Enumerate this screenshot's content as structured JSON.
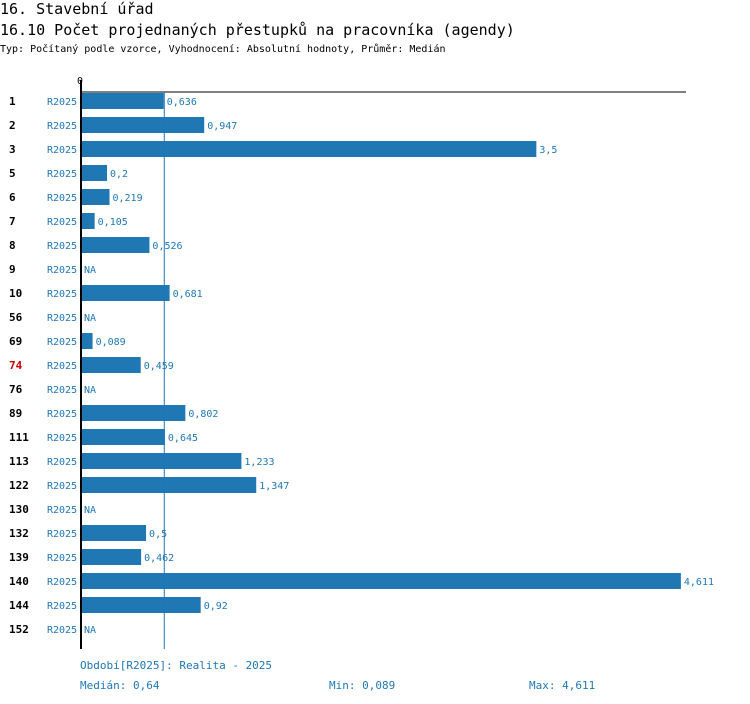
{
  "header": {
    "section": "16. Stavební úřad",
    "title": "16.10 Počet projednaných přestupků na pracovníka (agendy)",
    "subtitle": "Typ: Počítaný podle vzorce, Vyhodnocení: Absolutní hodnoty, Průměr: Medián"
  },
  "colors": {
    "bar": "#1f77b4",
    "label": "#1f77b4",
    "id_text": "#000000",
    "highlight_id": "#cc0000",
    "axis": "#000000",
    "median_line": "#1f77b4"
  },
  "chart_data": {
    "type": "bar",
    "orientation": "horizontal",
    "axis_zero_label": "0",
    "series_label": "R2025",
    "highlight_id": "74",
    "median": 0.64,
    "rows": [
      {
        "id": "1",
        "series": "R2025",
        "value": 0.636,
        "label": "0,636"
      },
      {
        "id": "2",
        "series": "R2025",
        "value": 0.947,
        "label": "0,947"
      },
      {
        "id": "3",
        "series": "R2025",
        "value": 3.5,
        "label": "3,5"
      },
      {
        "id": "5",
        "series": "R2025",
        "value": 0.2,
        "label": "0,2"
      },
      {
        "id": "6",
        "series": "R2025",
        "value": 0.219,
        "label": "0,219"
      },
      {
        "id": "7",
        "series": "R2025",
        "value": 0.105,
        "label": "0,105"
      },
      {
        "id": "8",
        "series": "R2025",
        "value": 0.526,
        "label": "0,526"
      },
      {
        "id": "9",
        "series": "R2025",
        "value": null,
        "label": "NA"
      },
      {
        "id": "10",
        "series": "R2025",
        "value": 0.681,
        "label": "0,681"
      },
      {
        "id": "56",
        "series": "R2025",
        "value": null,
        "label": "NA"
      },
      {
        "id": "69",
        "series": "R2025",
        "value": 0.089,
        "label": "0,089"
      },
      {
        "id": "74",
        "series": "R2025",
        "value": 0.459,
        "label": "0,459"
      },
      {
        "id": "76",
        "series": "R2025",
        "value": null,
        "label": "NA"
      },
      {
        "id": "89",
        "series": "R2025",
        "value": 0.802,
        "label": "0,802"
      },
      {
        "id": "111",
        "series": "R2025",
        "value": 0.645,
        "label": "0,645"
      },
      {
        "id": "113",
        "series": "R2025",
        "value": 1.233,
        "label": "1,233"
      },
      {
        "id": "122",
        "series": "R2025",
        "value": 1.347,
        "label": "1,347"
      },
      {
        "id": "130",
        "series": "R2025",
        "value": null,
        "label": "NA"
      },
      {
        "id": "132",
        "series": "R2025",
        "value": 0.5,
        "label": "0,5"
      },
      {
        "id": "139",
        "series": "R2025",
        "value": 0.462,
        "label": "0,462"
      },
      {
        "id": "140",
        "series": "R2025",
        "value": 4.611,
        "label": "4,611"
      },
      {
        "id": "144",
        "series": "R2025",
        "value": 0.92,
        "label": "0,92"
      },
      {
        "id": "152",
        "series": "R2025",
        "value": null,
        "label": "NA"
      }
    ]
  },
  "footer": {
    "period": "Období[R2025]: Realita - 2025",
    "median": "Medián: 0,64",
    "min": "Min: 0,089",
    "max": "Max: 4,611"
  }
}
